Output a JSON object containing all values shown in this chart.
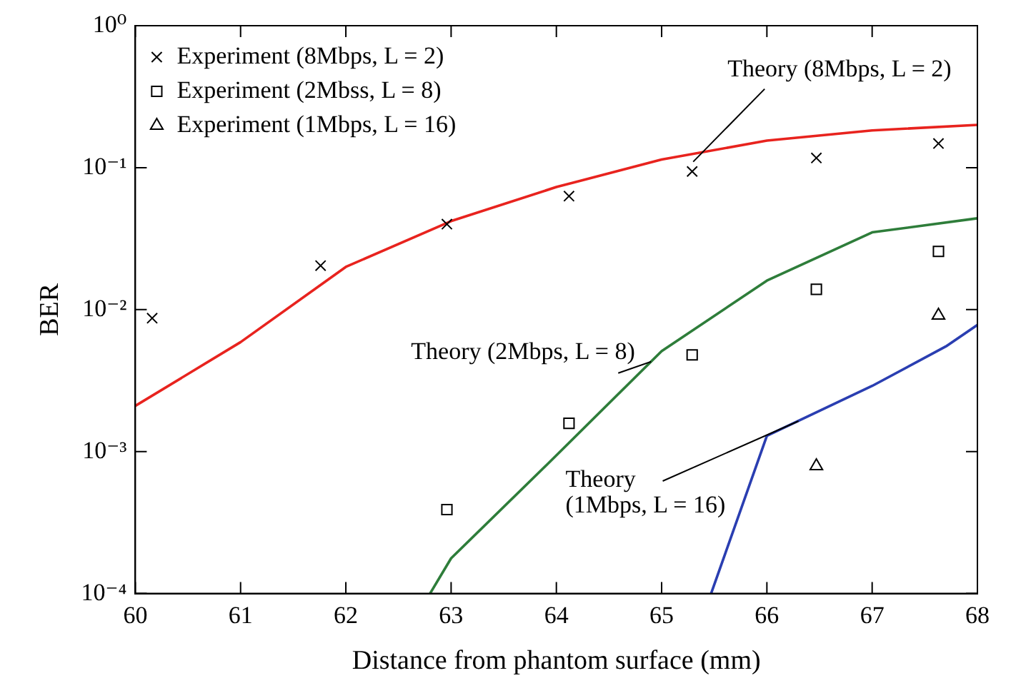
{
  "chart_data": {
    "type": "scatter",
    "xlabel": "Distance from phantom surface (mm)",
    "ylabel": "BER",
    "log": "y",
    "grid": false,
    "legend": "top left",
    "xlim": [
      60,
      68
    ],
    "xticks": [
      60,
      61,
      62,
      63,
      64,
      65,
      66,
      67,
      68
    ],
    "ylim": [
      0.0001,
      1
    ],
    "yticks": [
      {
        "value": 0.0001,
        "label": "10⁻⁴"
      },
      {
        "value": 0.001,
        "label": "10⁻³"
      },
      {
        "value": 0.01,
        "label": "10⁻²"
      },
      {
        "value": 0.1,
        "label": "10⁻¹"
      },
      {
        "value": 1,
        "label": "10⁰"
      }
    ],
    "series": [
      {
        "name": "Experiment (8Mbps, L = 2)",
        "type": "scatter",
        "marker": "cross",
        "color": "#000000",
        "x": [
          60.16,
          61.76,
          62.96,
          64.12,
          65.29,
          66.47,
          67.63
        ],
        "values": [
          0.0087,
          0.0204,
          0.04,
          0.063,
          0.094,
          0.117,
          0.148
        ]
      },
      {
        "name": "Experiment (2Mbss, L = 8)",
        "type": "scatter",
        "marker": "square",
        "color": "#000000",
        "x": [
          62.96,
          64.12,
          65.29,
          66.47,
          67.63
        ],
        "values": [
          0.00039,
          0.00158,
          0.0048,
          0.0139,
          0.0257
        ]
      },
      {
        "name": "Experiment (1Mbps, L = 16)",
        "type": "scatter",
        "marker": "triangle",
        "color": "#000000",
        "x": [
          66.47,
          67.63
        ],
        "values": [
          0.00079,
          0.0091
        ]
      },
      {
        "type": "line",
        "marker": "none",
        "color": "#e8231e",
        "x": [
          60,
          61,
          62,
          63,
          64,
          65,
          66,
          67,
          68
        ],
        "values": [
          0.0021,
          0.0059,
          0.02,
          0.042,
          0.073,
          0.114,
          0.155,
          0.183,
          0.2
        ]
      },
      {
        "type": "line",
        "marker": "none",
        "color": "#2e7d3a",
        "x": [
          62.8,
          63,
          64,
          65,
          66,
          67,
          68
        ],
        "values": [
          0.0001,
          0.000177,
          0.00094,
          0.0051,
          0.016,
          0.035,
          0.044
        ]
      },
      {
        "type": "line",
        "marker": "none",
        "color": "#2a3eb1",
        "x": [
          65.47,
          66,
          67,
          67.7,
          68
        ],
        "values": [
          0.0001,
          0.00129,
          0.0029,
          0.0055,
          0.0078
        ]
      }
    ],
    "annotations": [
      {
        "text": "Theory (8Mbps, L = 2)",
        "x": 65.3,
        "y": 0.11
      },
      {
        "text": "Theory (2Mbps, L = 8)",
        "x": 64.9,
        "y": 0.0043
      },
      {
        "text": "Theory\n(1Mbps, L = 16)",
        "x": 66.3,
        "y": 0.00164
      }
    ]
  }
}
